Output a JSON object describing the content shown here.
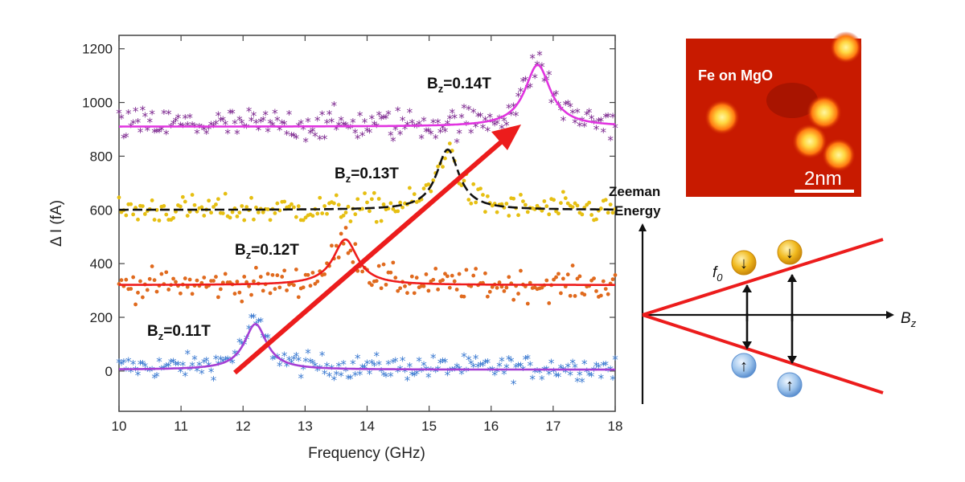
{
  "colors": {
    "arrow": "#ec1c1c",
    "axes": "#444444",
    "stm_background": "#c81a00",
    "spin_down_ball": "#f0b81c",
    "spin_up_ball": "#9fc5ec"
  },
  "chart_data": {
    "type": "scatter",
    "title": "",
    "xlabel": "Frequency (GHz)",
    "ylabel": "Δ I (fA)",
    "xlim": [
      10,
      18
    ],
    "ylim": [
      -150,
      1250
    ],
    "xticks": [
      10,
      11,
      12,
      13,
      14,
      15,
      16,
      17,
      18
    ],
    "yticks": [
      0,
      200,
      400,
      600,
      800,
      1000,
      1200
    ],
    "grid": false,
    "series": [
      {
        "name": "Bz=0.11T",
        "label_main": "B",
        "label_sub": "z",
        "label_rest": "=0.11T",
        "baseline": 5,
        "peak_freq": 12.2,
        "peak_height": 170,
        "width": 0.22,
        "noise": 22,
        "marker_color": "#3d7bd1",
        "fit_color": "#a53fd4",
        "marker": "star"
      },
      {
        "name": "Bz=0.12T",
        "label_main": "B",
        "label_sub": "z",
        "label_rest": "=0.12T",
        "baseline": 320,
        "peak_freq": 13.65,
        "peak_height": 170,
        "width": 0.24,
        "noise": 28,
        "marker_color": "#e06a1e",
        "fit_color": "#ee1c1c",
        "marker": "dot"
      },
      {
        "name": "Bz=0.13T",
        "label_main": "B",
        "label_sub": "z",
        "label_rest": "=0.13T",
        "baseline": 600,
        "peak_freq": 15.3,
        "peak_height": 225,
        "width": 0.22,
        "noise": 26,
        "marker_color": "#e6bf12",
        "fit_color": "#111111",
        "fit_dash": true,
        "marker": "dot"
      },
      {
        "name": "Bz=0.14T",
        "label_main": "B",
        "label_sub": "z",
        "label_rest": "=0.14T",
        "baseline": 910,
        "peak_freq": 16.75,
        "peak_height": 230,
        "width": 0.25,
        "noise": 30,
        "marker_color": "#7e2a90",
        "fit_color": "#e134e0",
        "marker": "star"
      }
    ]
  },
  "stm_image": {
    "label": "Fe on MgO",
    "scale_label": "2nm"
  },
  "zeeman_diagram": {
    "y_axis_title_line1": "Zeeman",
    "y_axis_title_line2": "Energy",
    "x_axis_label_main": "B",
    "x_axis_label_sub": "z",
    "freq_label_main": "f",
    "freq_label_sub": "0",
    "spin_down_glyph": "↓",
    "spin_up_glyph": "↑"
  }
}
